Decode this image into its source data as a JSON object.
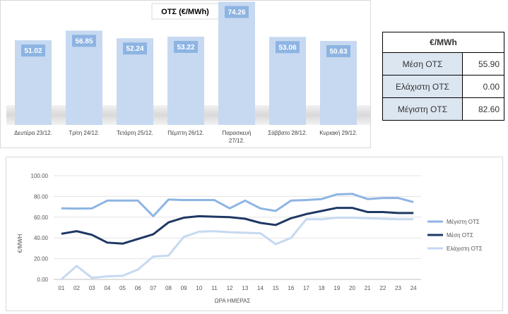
{
  "colors": {
    "bar_fill": "#c6d9f1",
    "bar_label_bg": "#8db4e2",
    "series_max": "#8eb4e3",
    "series_mean": "#1f3864",
    "series_min": "#c6d9f1",
    "stats_label_bg": "#dce6f1"
  },
  "stats_table": {
    "header": "€/MWh",
    "rows": [
      {
        "label": "Μέση ΟΤΣ",
        "value": "55.90"
      },
      {
        "label": "Ελάχιστη ΟΤΣ",
        "value": "0.00"
      },
      {
        "label": "Μέγιστη ΟΤΣ",
        "value": "82.60"
      }
    ]
  },
  "chart_data": [
    {
      "type": "bar",
      "title": "ΟΤΣ (€/MWh)",
      "categories": [
        "Δευτέρα 23/12.",
        "Τρίτη 24/12.",
        "Τετάρτη 25/12.",
        "Πέμπτη 26/12.",
        "Παρασκευή 27/12.",
        "Σάββατο 28/12.",
        "Κυριακή 29/12."
      ],
      "values": [
        51.02,
        56.85,
        52.24,
        53.22,
        74.26,
        53.06,
        50.63
      ],
      "value_labels": [
        "51.02",
        "56.85",
        "52.24",
        "53.22",
        "74.26",
        "53.06",
        "50.63"
      ],
      "ylim": [
        0,
        80
      ],
      "grid": false
    },
    {
      "type": "line",
      "x": [
        "01",
        "02",
        "03",
        "04",
        "05",
        "06",
        "07",
        "08",
        "09",
        "10",
        "11",
        "12",
        "13",
        "14",
        "15",
        "16",
        "17",
        "18",
        "19",
        "20",
        "21",
        "22",
        "23",
        "24"
      ],
      "xlabel": "ΩΡΑ ΗΜΕΡΑΣ",
      "ylabel": "€/MWH",
      "ylim": [
        0,
        100
      ],
      "yticks": [
        "0.00",
        "20.00",
        "40.00",
        "60.00",
        "80.00",
        "100.00"
      ],
      "legend_position": "right",
      "grid": true,
      "series": [
        {
          "name": "Μέγιστη ΟΤΣ",
          "values": [
            68.5,
            68.3,
            68.5,
            76,
            76,
            76,
            61,
            77,
            76.5,
            76.5,
            76.5,
            68.5,
            76,
            68.5,
            66,
            76,
            76.5,
            77.5,
            82,
            82.5,
            77.5,
            78.5,
            78.5,
            74.5
          ]
        },
        {
          "name": "Μέση ΟΤΣ",
          "values": [
            44,
            46.5,
            43,
            35.5,
            34.5,
            39,
            43.5,
            55,
            59.5,
            61,
            60.5,
            60,
            58.5,
            54.5,
            52.5,
            59,
            63,
            66,
            69,
            69,
            65,
            65,
            64,
            64
          ]
        },
        {
          "name": "Ελάχιστη ΟΤΣ",
          "values": [
            0,
            13,
            1.5,
            3,
            3.5,
            9.5,
            22,
            23,
            41,
            46,
            46.5,
            45.5,
            45,
            44.5,
            34,
            40,
            58,
            58,
            59.5,
            59.5,
            59,
            58.5,
            58,
            58
          ]
        }
      ]
    }
  ]
}
